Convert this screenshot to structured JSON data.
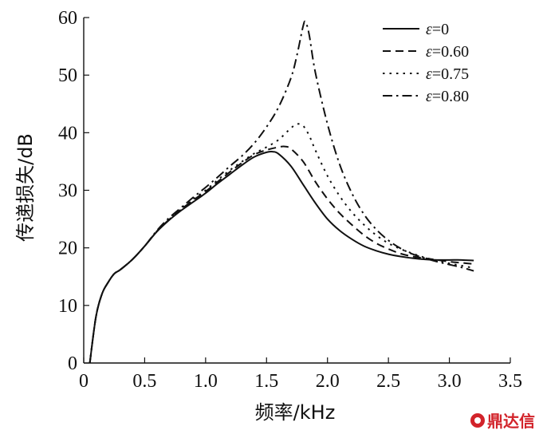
{
  "chart_data": {
    "type": "line",
    "xlabel": "频率/kHz",
    "ylabel": "传递损失/dB",
    "xlim": [
      0,
      3.5
    ],
    "ylim": [
      0,
      60
    ],
    "xticks": [
      "0",
      "0.5",
      "1.0",
      "1.5",
      "2.0",
      "2.5",
      "3.0",
      "3.5"
    ],
    "xtick_values": [
      0,
      0.5,
      1.0,
      1.5,
      2.0,
      2.5,
      3.0,
      3.5
    ],
    "yticks": [
      "0",
      "10",
      "20",
      "30",
      "40",
      "50",
      "60"
    ],
    "ytick_values": [
      0,
      10,
      20,
      30,
      40,
      50,
      60
    ],
    "grid": false,
    "legend_position": "top-right",
    "series": [
      {
        "name": "ε=0",
        "dash": "solid",
        "x": [
          0.05,
          0.1,
          0.15,
          0.2,
          0.25,
          0.3,
          0.4,
          0.5,
          0.6,
          0.7,
          0.8,
          0.9,
          1.0,
          1.1,
          1.2,
          1.3,
          1.4,
          1.5,
          1.55,
          1.6,
          1.7,
          1.8,
          1.9,
          2.0,
          2.1,
          2.2,
          2.3,
          2.4,
          2.5,
          2.6,
          2.7,
          2.8,
          2.9,
          3.0,
          3.1,
          3.2
        ],
        "y": [
          0,
          8,
          12,
          14,
          15.5,
          16.2,
          18,
          20.3,
          22.8,
          24.8,
          26.5,
          28,
          29.5,
          31.2,
          32.8,
          34.4,
          35.8,
          36.6,
          36.7,
          36.3,
          34.2,
          31,
          27.8,
          25,
          23,
          21.5,
          20.3,
          19.5,
          18.9,
          18.5,
          18.2,
          18,
          17.9,
          17.9,
          17.9,
          17.8
        ]
      },
      {
        "name": "ε=0.60",
        "dash": "dash",
        "x": [
          0.05,
          0.1,
          0.15,
          0.2,
          0.25,
          0.3,
          0.4,
          0.5,
          0.6,
          0.7,
          0.8,
          0.9,
          1.0,
          1.1,
          1.2,
          1.3,
          1.4,
          1.5,
          1.6,
          1.65,
          1.7,
          1.8,
          1.9,
          2.0,
          2.1,
          2.2,
          2.3,
          2.4,
          2.5,
          2.6,
          2.7,
          2.8,
          2.9,
          3.0,
          3.1,
          3.2
        ],
        "y": [
          0,
          8,
          12,
          14,
          15.5,
          16.2,
          18,
          20.3,
          22.9,
          24.9,
          26.7,
          28.3,
          29.8,
          31.5,
          33.2,
          34.8,
          36.2,
          37,
          37.5,
          37.6,
          37.2,
          35,
          31.5,
          28.5,
          26,
          24,
          22.2,
          20.8,
          19.8,
          19,
          18.5,
          18.2,
          17.9,
          17.6,
          17.4,
          17.2
        ]
      },
      {
        "name": "ε=0.75",
        "dash": "dot",
        "x": [
          0.05,
          0.1,
          0.15,
          0.2,
          0.25,
          0.3,
          0.4,
          0.5,
          0.6,
          0.7,
          0.8,
          0.9,
          1.0,
          1.1,
          1.2,
          1.3,
          1.4,
          1.5,
          1.6,
          1.7,
          1.75,
          1.8,
          1.85,
          1.9,
          2.0,
          2.1,
          2.2,
          2.3,
          2.4,
          2.5,
          2.6,
          2.7,
          2.8,
          2.9,
          3.0,
          3.1,
          3.2
        ],
        "y": [
          0,
          8,
          12,
          14,
          15.5,
          16.2,
          18,
          20.3,
          22.9,
          25,
          26.8,
          28.5,
          30,
          31.8,
          33.5,
          35,
          36.4,
          37.5,
          38.8,
          40.8,
          41.5,
          41.2,
          39.5,
          37,
          32.5,
          29,
          26.2,
          24,
          22.2,
          20.8,
          19.8,
          19,
          18.3,
          17.8,
          17.3,
          16.9,
          16.5
        ]
      },
      {
        "name": "ε=0.80",
        "dash": "dashdot",
        "x": [
          0.05,
          0.1,
          0.15,
          0.2,
          0.25,
          0.3,
          0.4,
          0.5,
          0.6,
          0.7,
          0.8,
          0.9,
          1.0,
          1.1,
          1.2,
          1.3,
          1.4,
          1.5,
          1.6,
          1.7,
          1.75,
          1.8,
          1.82,
          1.85,
          1.9,
          2.0,
          2.1,
          2.2,
          2.3,
          2.4,
          2.5,
          2.6,
          2.7,
          2.8,
          2.9,
          3.0,
          3.1,
          3.2
        ],
        "y": [
          0,
          8,
          12,
          14,
          15.5,
          16.2,
          18,
          20.3,
          23,
          25.2,
          27,
          28.8,
          30.5,
          32.3,
          34.2,
          36,
          38.2,
          41,
          44.5,
          49.5,
          53.5,
          58.5,
          59.2,
          57,
          50.5,
          41.5,
          34.5,
          29.5,
          25.8,
          23.2,
          21.3,
          19.9,
          18.9,
          18.2,
          17.6,
          17.1,
          16.6,
          16
        ]
      }
    ]
  },
  "watermark": {
    "text": "鼎达信",
    "color": "#d2232a"
  }
}
